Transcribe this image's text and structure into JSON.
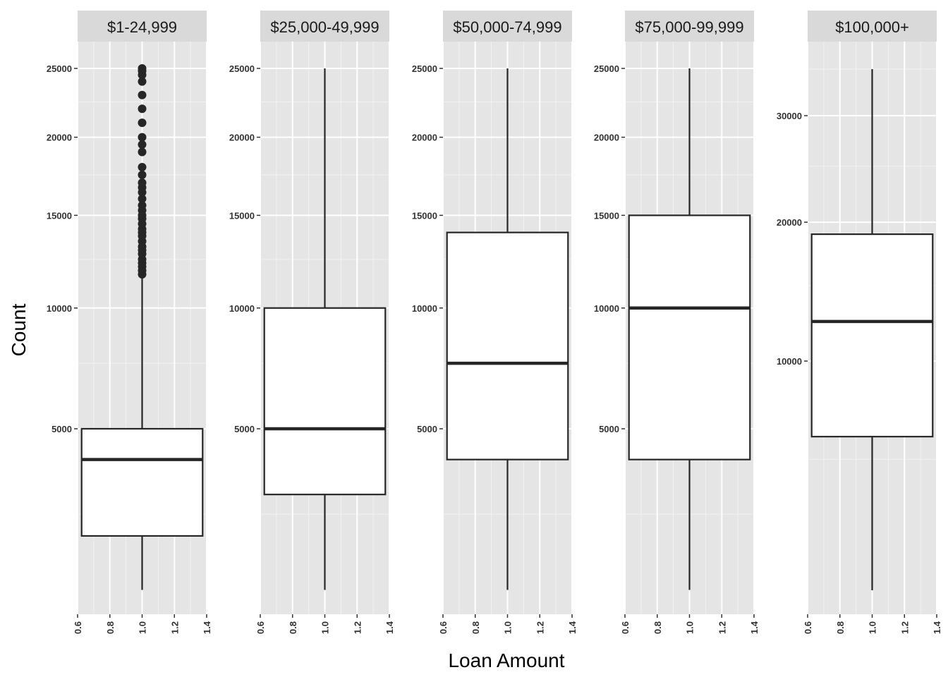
{
  "chart_data": {
    "type": "boxplot",
    "xlabel": "Loan Amount",
    "ylabel": "Count",
    "x_ticks": [
      0.6,
      0.8,
      1.0,
      1.2,
      1.4
    ],
    "x_tick_labels": [
      "0.6",
      "0.8",
      "1.0",
      "1.2",
      "1.4"
    ],
    "xlim": [
      0.6,
      1.4
    ],
    "y_scale": "sqrt",
    "grid": true,
    "panels": [
      {
        "label": "$1-24,999",
        "y_ticks": [
          5000,
          10000,
          15000,
          20000,
          25000
        ],
        "y_tick_labels": [
          "5000",
          "10000",
          "15000",
          "20000",
          "25000"
        ],
        "ylim": [
          0,
          26000
        ],
        "box": {
          "whisker_low": 1000,
          "q1": 2000,
          "median": 4000,
          "q3": 5000,
          "whisker_high": 11500
        },
        "outliers": [
          11700,
          11900,
          12100,
          12300,
          12500,
          12800,
          13000,
          13200,
          13500,
          13800,
          14000,
          14200,
          14500,
          14800,
          15000,
          15300,
          15600,
          16000,
          16400,
          16700,
          17000,
          17500,
          18000,
          19000,
          19500,
          20000,
          21000,
          22000,
          23000,
          24000,
          24500,
          24800,
          25000
        ]
      },
      {
        "label": "$25,000-49,999",
        "y_ticks": [
          5000,
          10000,
          15000,
          20000,
          25000
        ],
        "y_tick_labels": [
          "5000",
          "10000",
          "15000",
          "20000",
          "25000"
        ],
        "ylim": [
          0,
          26000
        ],
        "box": {
          "whisker_low": 1000,
          "q1": 3000,
          "median": 5000,
          "q3": 10000,
          "whisker_high": 25000
        },
        "outliers": []
      },
      {
        "label": "$50,000-74,999",
        "y_ticks": [
          5000,
          10000,
          15000,
          20000,
          25000
        ],
        "y_tick_labels": [
          "5000",
          "10000",
          "15000",
          "20000",
          "25000"
        ],
        "ylim": [
          0,
          26000
        ],
        "box": {
          "whisker_low": 1000,
          "q1": 4000,
          "median": 7500,
          "q3": 14000,
          "whisker_high": 25000
        },
        "outliers": []
      },
      {
        "label": "$75,000-99,999",
        "y_ticks": [
          5000,
          10000,
          15000,
          20000,
          25000
        ],
        "y_tick_labels": [
          "5000",
          "10000",
          "15000",
          "20000",
          "25000"
        ],
        "ylim": [
          0,
          26000
        ],
        "box": {
          "whisker_low": 1000,
          "q1": 4000,
          "median": 10000,
          "q3": 15000,
          "whisker_high": 25000
        },
        "outliers": []
      },
      {
        "label": "$100,000+",
        "y_ticks": [
          10000,
          20000,
          30000
        ],
        "y_tick_labels": [
          "10000",
          "20000",
          "30000"
        ],
        "ylim": [
          0,
          36000
        ],
        "box": {
          "whisker_low": 1000,
          "q1": 6000,
          "median": 12500,
          "q3": 19000,
          "whisker_high": 35000
        },
        "outliers": []
      }
    ],
    "colors": {
      "panel_background": "#e5e5e5",
      "grid_major": "#ffffff",
      "grid_minor": "#f2f2f2",
      "strip_background": "#d9d9d9",
      "box_fill": "#ffffff",
      "box_line": "#262626",
      "outlier": "#262626"
    }
  }
}
